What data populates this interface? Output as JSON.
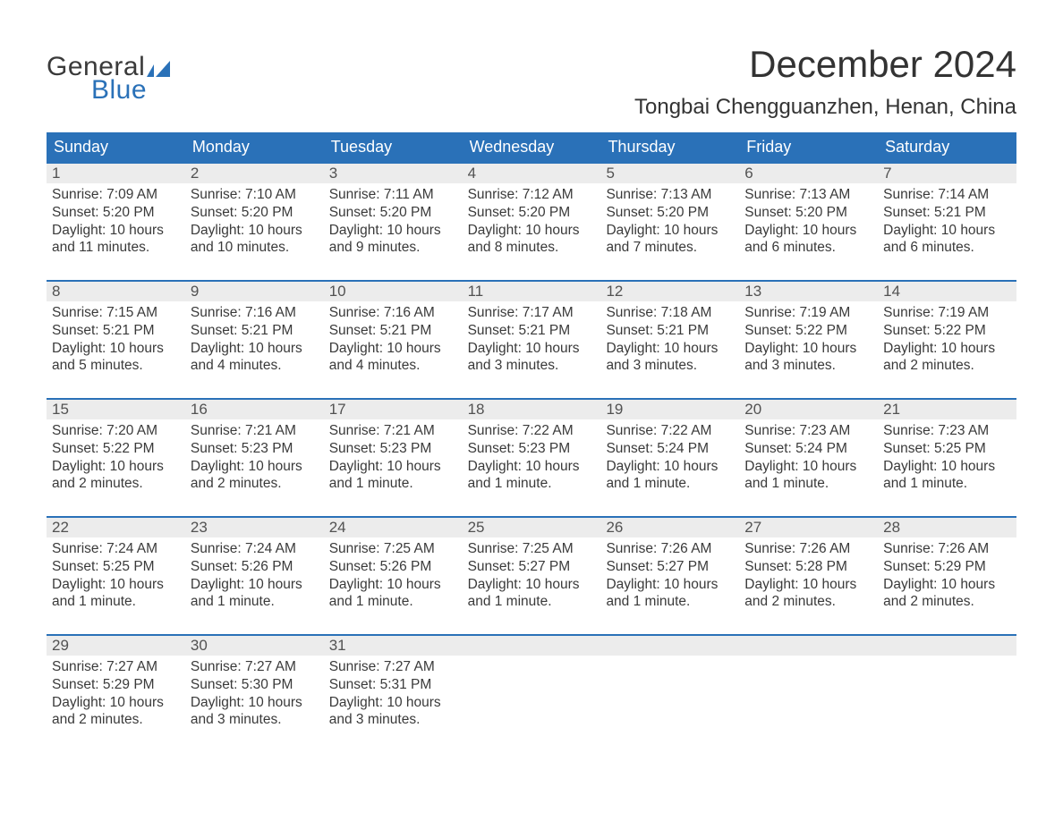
{
  "brand": {
    "word1": "General",
    "word2": "Blue",
    "flag_color": "#2a71b8"
  },
  "title": "December 2024",
  "location": "Tongbai Chengguanzhen, Henan, China",
  "colors": {
    "header_bg": "#2a71b8",
    "header_text": "#ffffff",
    "daynum_bg": "#ececec",
    "text": "#3a3a3a",
    "week_border": "#2a71b8"
  },
  "day_names": [
    "Sunday",
    "Monday",
    "Tuesday",
    "Wednesday",
    "Thursday",
    "Friday",
    "Saturday"
  ],
  "weeks": [
    [
      {
        "n": "1",
        "sunrise": "Sunrise: 7:09 AM",
        "sunset": "Sunset: 5:20 PM",
        "daylight": "Daylight: 10 hours and 11 minutes."
      },
      {
        "n": "2",
        "sunrise": "Sunrise: 7:10 AM",
        "sunset": "Sunset: 5:20 PM",
        "daylight": "Daylight: 10 hours and 10 minutes."
      },
      {
        "n": "3",
        "sunrise": "Sunrise: 7:11 AM",
        "sunset": "Sunset: 5:20 PM",
        "daylight": "Daylight: 10 hours and 9 minutes."
      },
      {
        "n": "4",
        "sunrise": "Sunrise: 7:12 AM",
        "sunset": "Sunset: 5:20 PM",
        "daylight": "Daylight: 10 hours and 8 minutes."
      },
      {
        "n": "5",
        "sunrise": "Sunrise: 7:13 AM",
        "sunset": "Sunset: 5:20 PM",
        "daylight": "Daylight: 10 hours and 7 minutes."
      },
      {
        "n": "6",
        "sunrise": "Sunrise: 7:13 AM",
        "sunset": "Sunset: 5:20 PM",
        "daylight": "Daylight: 10 hours and 6 minutes."
      },
      {
        "n": "7",
        "sunrise": "Sunrise: 7:14 AM",
        "sunset": "Sunset: 5:21 PM",
        "daylight": "Daylight: 10 hours and 6 minutes."
      }
    ],
    [
      {
        "n": "8",
        "sunrise": "Sunrise: 7:15 AM",
        "sunset": "Sunset: 5:21 PM",
        "daylight": "Daylight: 10 hours and 5 minutes."
      },
      {
        "n": "9",
        "sunrise": "Sunrise: 7:16 AM",
        "sunset": "Sunset: 5:21 PM",
        "daylight": "Daylight: 10 hours and 4 minutes."
      },
      {
        "n": "10",
        "sunrise": "Sunrise: 7:16 AM",
        "sunset": "Sunset: 5:21 PM",
        "daylight": "Daylight: 10 hours and 4 minutes."
      },
      {
        "n": "11",
        "sunrise": "Sunrise: 7:17 AM",
        "sunset": "Sunset: 5:21 PM",
        "daylight": "Daylight: 10 hours and 3 minutes."
      },
      {
        "n": "12",
        "sunrise": "Sunrise: 7:18 AM",
        "sunset": "Sunset: 5:21 PM",
        "daylight": "Daylight: 10 hours and 3 minutes."
      },
      {
        "n": "13",
        "sunrise": "Sunrise: 7:19 AM",
        "sunset": "Sunset: 5:22 PM",
        "daylight": "Daylight: 10 hours and 3 minutes."
      },
      {
        "n": "14",
        "sunrise": "Sunrise: 7:19 AM",
        "sunset": "Sunset: 5:22 PM",
        "daylight": "Daylight: 10 hours and 2 minutes."
      }
    ],
    [
      {
        "n": "15",
        "sunrise": "Sunrise: 7:20 AM",
        "sunset": "Sunset: 5:22 PM",
        "daylight": "Daylight: 10 hours and 2 minutes."
      },
      {
        "n": "16",
        "sunrise": "Sunrise: 7:21 AM",
        "sunset": "Sunset: 5:23 PM",
        "daylight": "Daylight: 10 hours and 2 minutes."
      },
      {
        "n": "17",
        "sunrise": "Sunrise: 7:21 AM",
        "sunset": "Sunset: 5:23 PM",
        "daylight": "Daylight: 10 hours and 1 minute."
      },
      {
        "n": "18",
        "sunrise": "Sunrise: 7:22 AM",
        "sunset": "Sunset: 5:23 PM",
        "daylight": "Daylight: 10 hours and 1 minute."
      },
      {
        "n": "19",
        "sunrise": "Sunrise: 7:22 AM",
        "sunset": "Sunset: 5:24 PM",
        "daylight": "Daylight: 10 hours and 1 minute."
      },
      {
        "n": "20",
        "sunrise": "Sunrise: 7:23 AM",
        "sunset": "Sunset: 5:24 PM",
        "daylight": "Daylight: 10 hours and 1 minute."
      },
      {
        "n": "21",
        "sunrise": "Sunrise: 7:23 AM",
        "sunset": "Sunset: 5:25 PM",
        "daylight": "Daylight: 10 hours and 1 minute."
      }
    ],
    [
      {
        "n": "22",
        "sunrise": "Sunrise: 7:24 AM",
        "sunset": "Sunset: 5:25 PM",
        "daylight": "Daylight: 10 hours and 1 minute."
      },
      {
        "n": "23",
        "sunrise": "Sunrise: 7:24 AM",
        "sunset": "Sunset: 5:26 PM",
        "daylight": "Daylight: 10 hours and 1 minute."
      },
      {
        "n": "24",
        "sunrise": "Sunrise: 7:25 AM",
        "sunset": "Sunset: 5:26 PM",
        "daylight": "Daylight: 10 hours and 1 minute."
      },
      {
        "n": "25",
        "sunrise": "Sunrise: 7:25 AM",
        "sunset": "Sunset: 5:27 PM",
        "daylight": "Daylight: 10 hours and 1 minute."
      },
      {
        "n": "26",
        "sunrise": "Sunrise: 7:26 AM",
        "sunset": "Sunset: 5:27 PM",
        "daylight": "Daylight: 10 hours and 1 minute."
      },
      {
        "n": "27",
        "sunrise": "Sunrise: 7:26 AM",
        "sunset": "Sunset: 5:28 PM",
        "daylight": "Daylight: 10 hours and 2 minutes."
      },
      {
        "n": "28",
        "sunrise": "Sunrise: 7:26 AM",
        "sunset": "Sunset: 5:29 PM",
        "daylight": "Daylight: 10 hours and 2 minutes."
      }
    ],
    [
      {
        "n": "29",
        "sunrise": "Sunrise: 7:27 AM",
        "sunset": "Sunset: 5:29 PM",
        "daylight": "Daylight: 10 hours and 2 minutes."
      },
      {
        "n": "30",
        "sunrise": "Sunrise: 7:27 AM",
        "sunset": "Sunset: 5:30 PM",
        "daylight": "Daylight: 10 hours and 3 minutes."
      },
      {
        "n": "31",
        "sunrise": "Sunrise: 7:27 AM",
        "sunset": "Sunset: 5:31 PM",
        "daylight": "Daylight: 10 hours and 3 minutes."
      },
      null,
      null,
      null,
      null
    ]
  ]
}
